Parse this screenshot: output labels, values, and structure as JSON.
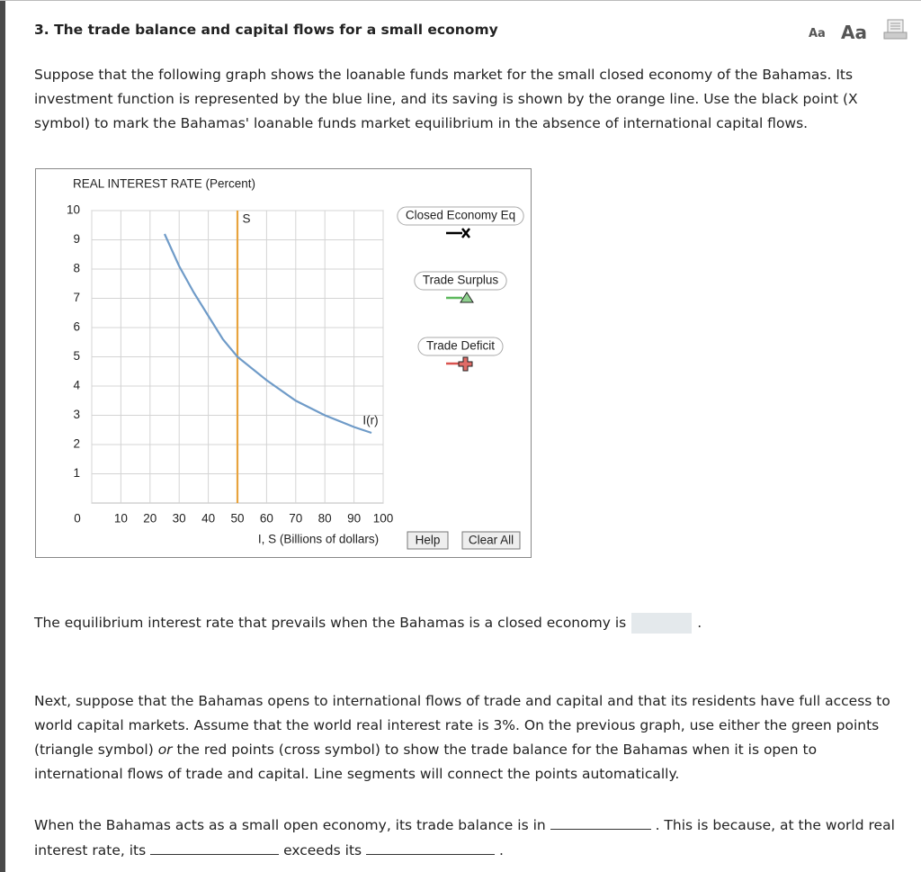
{
  "header": {
    "title": "3. The trade balance and capital flows for a small economy",
    "text_size_small": "Aa",
    "text_size_large": "Aa"
  },
  "intro": "Suppose that the following graph shows the loanable funds market for the small closed economy of the Bahamas. Its investment function is represented by the blue line, and its saving is shown by the orange line. Use the black point (X symbol) to mark the Bahamas' loanable funds market equilibrium in the absence of international capital flows.",
  "chart_data": {
    "type": "line",
    "y_label": "REAL INTEREST RATE (Percent)",
    "x_label": "I, S (Billions of dollars)",
    "xlim": [
      0,
      100
    ],
    "xticks": [
      0,
      10,
      20,
      30,
      40,
      50,
      60,
      70,
      80,
      90,
      100
    ],
    "ylim": [
      0,
      10
    ],
    "yticks": [
      1,
      2,
      3,
      4,
      5,
      6,
      7,
      8,
      9,
      10
    ],
    "grid": true,
    "series": [
      {
        "name": "S",
        "color": "#e8a33d",
        "x": [
          50,
          50
        ],
        "values": [
          0,
          10
        ]
      },
      {
        "name": "I(r)",
        "color": "#6f9bc8",
        "x": [
          25,
          30,
          35,
          40,
          45,
          50,
          60,
          70,
          80,
          90,
          96
        ],
        "values": [
          9.2,
          8.1,
          7.2,
          6.4,
          5.6,
          5.0,
          4.2,
          3.5,
          3.0,
          2.6,
          2.4
        ]
      }
    ]
  },
  "tools": {
    "points": [
      "Closed Economy Eq",
      "Trade Surplus",
      "Trade Deficit"
    ],
    "buttons": [
      "Help",
      "Clear All"
    ]
  },
  "question_1": {
    "before": "The equilibrium interest rate that prevails when the Bahamas is a closed economy is",
    "after": "."
  },
  "paragraph_2": {
    "before": "Next, suppose that the Bahamas opens to international flows of trade and capital and that its residents have full access to world capital markets. Assume that the world real interest rate is 3%. On the previous graph, use either the green points (triangle symbol)",
    "emphasis": "or",
    "after": "the red points (cross symbol) to show the trade balance for the Bahamas when it is open to international flows of trade and capital. Line segments will connect the points automatically."
  },
  "question_2": {
    "part_1": "When the Bahamas acts as a small open economy, its trade balance is in",
    "part_2": ". This is because, at the world real interest rate, its",
    "part_3": "exceeds its",
    "part_4": "."
  }
}
